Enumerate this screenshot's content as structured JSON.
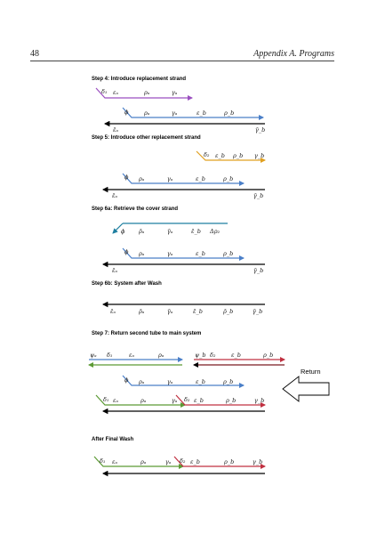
{
  "header": {
    "page_number": "48",
    "title": "Appendix A. Programs"
  },
  "steps": {
    "s4": "Step 4: Introduce replacement strand",
    "s5": "Step 5: Introduce other replacement strand",
    "s6a": "Step 6a: Retrieve the cover strand",
    "s6b": "Step 6b: System after Wash",
    "s7": "Step 7: Return second tube to main system",
    "final": "After Final Wash"
  },
  "labels": {
    "delta1": "δ₁",
    "delta2": "δ₂",
    "eps_a": "εₐ",
    "eps_b": "ε_b",
    "rho_a": "ρₐ",
    "rho_b": "ρ_b",
    "gamma_a": "γₐ",
    "gamma_b": "γ_b",
    "phi": "ϕ",
    "psi_a": "ψₐ",
    "psi_b": "ψ_b",
    "delta_rho2": "Δρ₂",
    "eps_a_bar": "ε̄ₐ",
    "eps_b_bar": "ε̄_b",
    "rho_a_bar": "ρ̄ₐ",
    "rho_b_bar": "ρ̄_b",
    "gamma_a_bar": "γ̄ₐ",
    "gamma_b_bar": "γ̄_b",
    "return": "Return"
  },
  "colors": {
    "purple": "#9b4fc0",
    "blue": "#4a7fc8",
    "orange": "#e0a020",
    "teal": "#1f7fa0",
    "green": "#5c9a35",
    "red": "#c03040",
    "black": "#000000"
  }
}
